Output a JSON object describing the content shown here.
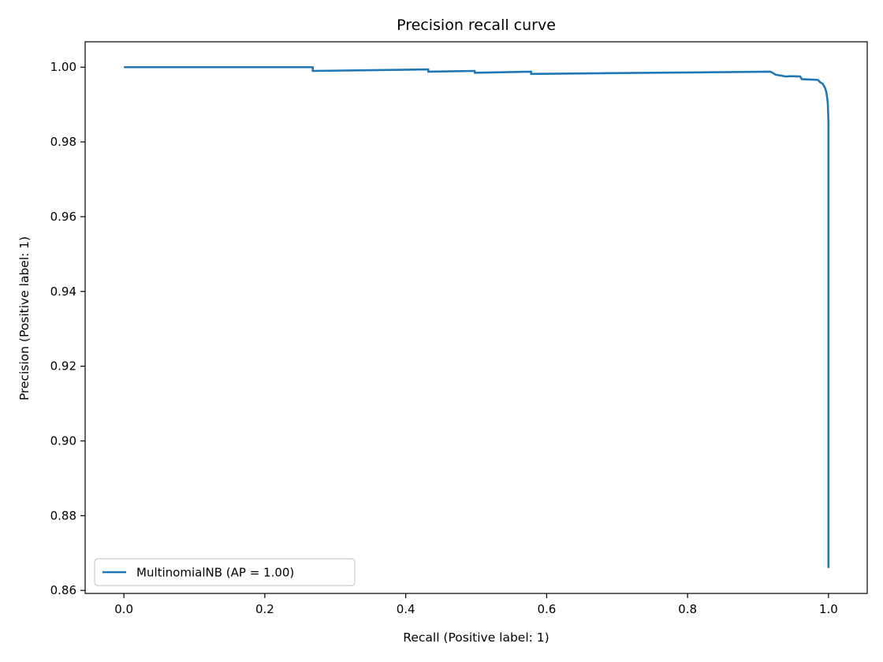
{
  "chart_data": {
    "type": "line",
    "title": "Precision recall curve",
    "xlabel": "Recall (Positive label: 1)",
    "ylabel": "Precision (Positive label: 1)",
    "xlim": [
      -0.055,
      1.055
    ],
    "ylim": [
      0.8592,
      1.0068
    ],
    "grid": false,
    "legend_position": "lower-left",
    "x_ticks": [
      {
        "value": 0.0,
        "label": "0.0"
      },
      {
        "value": 0.2,
        "label": "0.2"
      },
      {
        "value": 0.4,
        "label": "0.4"
      },
      {
        "value": 0.6,
        "label": "0.6"
      },
      {
        "value": 0.8,
        "label": "0.8"
      },
      {
        "value": 1.0,
        "label": "1.0"
      }
    ],
    "y_ticks": [
      {
        "value": 0.86,
        "label": "0.86"
      },
      {
        "value": 0.88,
        "label": "0.88"
      },
      {
        "value": 0.9,
        "label": "0.90"
      },
      {
        "value": 0.92,
        "label": "0.92"
      },
      {
        "value": 0.94,
        "label": "0.94"
      },
      {
        "value": 0.96,
        "label": "0.96"
      },
      {
        "value": 0.98,
        "label": "0.98"
      },
      {
        "value": 1.0,
        "label": "1.00"
      }
    ],
    "series": [
      {
        "name": "MultinomialNB (AP = 1.00)",
        "color": "#1f77b4",
        "points": [
          [
            0.0,
            1.0
          ],
          [
            0.268,
            1.0
          ],
          [
            0.268,
            0.999
          ],
          [
            0.432,
            0.9994
          ],
          [
            0.432,
            0.9988
          ],
          [
            0.498,
            0.999
          ],
          [
            0.498,
            0.9985
          ],
          [
            0.578,
            0.9988
          ],
          [
            0.578,
            0.9982
          ],
          [
            0.75,
            0.9985
          ],
          [
            0.918,
            0.9988
          ],
          [
            0.925,
            0.998
          ],
          [
            0.94,
            0.9975
          ],
          [
            0.945,
            0.9976
          ],
          [
            0.96,
            0.9975
          ],
          [
            0.962,
            0.9968
          ],
          [
            0.975,
            0.9967
          ],
          [
            0.985,
            0.9966
          ],
          [
            0.988,
            0.996
          ],
          [
            0.992,
            0.9955
          ],
          [
            0.995,
            0.9945
          ],
          [
            0.997,
            0.9933
          ],
          [
            0.998,
            0.992
          ],
          [
            0.999,
            0.9905
          ],
          [
            0.9995,
            0.988
          ],
          [
            1.0,
            0.985
          ],
          [
            1.0,
            0.866
          ]
        ]
      }
    ]
  }
}
